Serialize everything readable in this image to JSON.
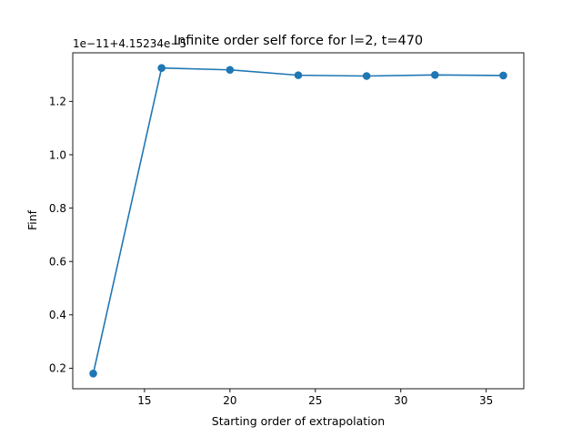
{
  "chart_data": {
    "type": "line",
    "title": "Infinite order self force for l=2, t=470",
    "xlabel": "Starting order of extrapolation",
    "ylabel": "Finf",
    "offset_label": "1e−11+4.15234e−5",
    "x": [
      12,
      16,
      20,
      24,
      28,
      32,
      36
    ],
    "series": [
      {
        "values": [
          0.18,
          1.325,
          1.318,
          1.298,
          1.295,
          1.299,
          1.297
        ]
      }
    ],
    "xlim": [
      10.8,
      37.2
    ],
    "ylim": [
      0.123,
      1.382
    ],
    "xticks": [
      15,
      20,
      25,
      30,
      35
    ],
    "xtick_labels": [
      "15",
      "20",
      "25",
      "30",
      "35"
    ],
    "yticks": [
      0.2,
      0.4,
      0.6,
      0.8,
      1.0,
      1.2
    ],
    "ytick_labels": [
      "0.2",
      "0.4",
      "0.6",
      "0.8",
      "1.0",
      "1.2"
    ],
    "grid": false,
    "line_color": "#1f77b4",
    "marker": "circle"
  }
}
